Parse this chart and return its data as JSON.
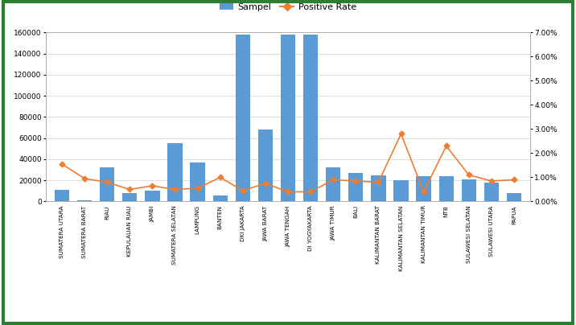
{
  "provinces": [
    "SUMATERA UTARA",
    "SUMATERA BARAT",
    "RIAU",
    "KEPULAUAN RIAU",
    "JAMBI",
    "SUMATERA SELATAN",
    "LAMPUNG",
    "BANTEN",
    "DKI JAKARTA",
    "JAWA BARAT",
    "JAWA TENGAH",
    "DI YOGYAKARTA",
    "JAWA TIMUR",
    "BALI",
    "KALIMANTAN BARAT",
    "KALIMANTAN SELATAN",
    "KALIMANTAN TIMUR",
    "NTB",
    "SULAWESI SELATAN",
    "SULAWESI UTARA",
    "PAPUA"
  ],
  "sampel": [
    11000,
    1500,
    32000,
    8000,
    10500,
    55000,
    37000,
    6000,
    158000,
    68000,
    158000,
    158000,
    32000,
    27000,
    25000,
    20000,
    24000,
    24000,
    21000,
    18000,
    8000
  ],
  "positive_rate": [
    0.0155,
    0.0095,
    0.008,
    0.005,
    0.0065,
    0.005,
    0.0055,
    0.01,
    0.0045,
    0.0075,
    0.004,
    0.004,
    0.009,
    0.0085,
    0.008,
    0.028,
    0.004,
    0.023,
    0.011,
    0.0085,
    0.009
  ],
  "bar_color": "#5B9BD5",
  "line_color": "#ED7D31",
  "marker_color": "#ED7D31",
  "legend_sampel": "Sampel",
  "legend_rate": "Positive Rate",
  "ylim_left": [
    0,
    160000
  ],
  "ylim_right": [
    0,
    0.07
  ],
  "yticks_left": [
    0,
    20000,
    40000,
    60000,
    80000,
    100000,
    120000,
    140000,
    160000
  ],
  "yticks_right": [
    0.0,
    0.01,
    0.02,
    0.03,
    0.04,
    0.05,
    0.06,
    0.07
  ],
  "border_color": "#2E7D32",
  "background_color": "#ffffff",
  "figsize": [
    7.16,
    4.04
  ],
  "dpi": 100
}
